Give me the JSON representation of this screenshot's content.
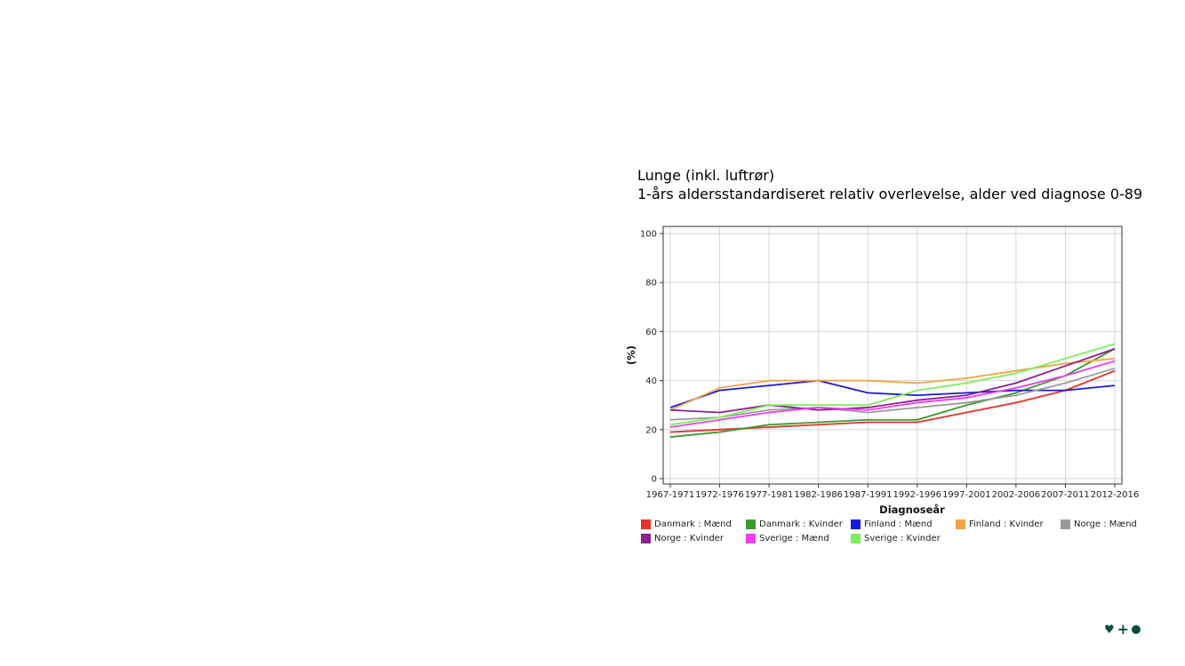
{
  "title_line1": "Lunge (inkl. luftrør)",
  "title_line2": "1-års aldersstandardiseret relativ overlevelse, alder ved diagnose 0-89",
  "chart_data": {
    "type": "line",
    "xlabel": "Diagnoseår",
    "ylabel": "(%)",
    "ylim": [
      0,
      100
    ],
    "yticks": [
      0,
      20,
      40,
      60,
      80,
      100
    ],
    "grid": true,
    "legend_position": "bottom",
    "categories": [
      "1967-1971",
      "1972-1976",
      "1977-1981",
      "1982-1986",
      "1987-1991",
      "1992-1996",
      "1997-2001",
      "2002-2006",
      "2007-2011",
      "2012-2016"
    ],
    "series": [
      {
        "name": "Danmark : Mænd",
        "color": "#e8312a",
        "values": [
          19,
          20,
          21,
          22,
          23,
          23,
          27,
          31,
          36,
          44
        ]
      },
      {
        "name": "Danmark : Kvinder",
        "color": "#3c9a2f",
        "values": [
          17,
          19,
          22,
          23,
          24,
          24,
          30,
          35,
          42,
          53
        ]
      },
      {
        "name": "Finland : Mænd",
        "color": "#1a1add",
        "values": [
          29,
          36,
          38,
          40,
          35,
          34,
          35,
          36,
          36,
          38
        ]
      },
      {
        "name": "Finland : Kvinder",
        "color": "#f2a241",
        "values": [
          28,
          37,
          40,
          40,
          40,
          39,
          41,
          44,
          47,
          49
        ]
      },
      {
        "name": "Norge : Mænd",
        "color": "#9a9a9a",
        "values": [
          24,
          25,
          28,
          29,
          27,
          29,
          31,
          34,
          39,
          45
        ]
      },
      {
        "name": "Norge : Kvinder",
        "color": "#8b1f8f",
        "values": [
          28,
          27,
          30,
          28,
          29,
          32,
          34,
          39,
          46,
          53
        ]
      },
      {
        "name": "Sverige : Mænd",
        "color": "#ee3cf0",
        "values": [
          21,
          24,
          27,
          29,
          28,
          31,
          33,
          37,
          42,
          48
        ]
      },
      {
        "name": "Sverige : Kvinder",
        "color": "#7def5a",
        "values": [
          22,
          25,
          30,
          30,
          30,
          36,
          39,
          43,
          49,
          55
        ]
      }
    ]
  }
}
